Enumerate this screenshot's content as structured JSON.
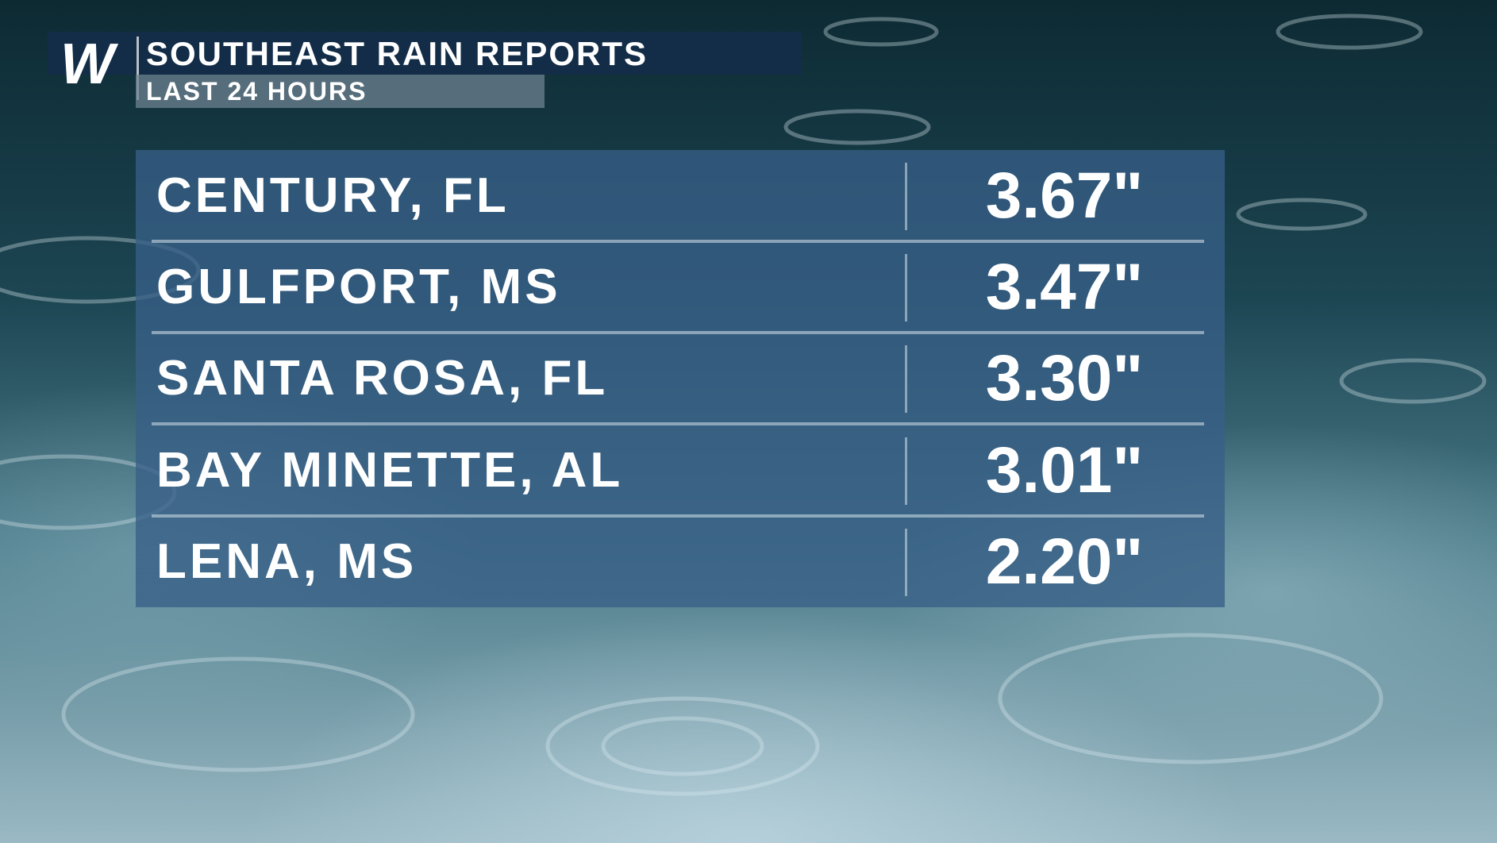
{
  "header": {
    "logo": "W",
    "title": "SOUTHEAST RAIN REPORTS",
    "subtitle": "LAST 24 HOURS"
  },
  "table": {
    "rows": [
      [
        "CENTURY, FL",
        "3.67\""
      ],
      [
        "GULFPORT, MS",
        "3.47\""
      ],
      [
        "SANTA ROSA, FL",
        "3.30\""
      ],
      [
        "BAY MINETTE, AL",
        "3.01\""
      ],
      [
        "LENA, MS",
        "2.20\""
      ]
    ]
  }
}
